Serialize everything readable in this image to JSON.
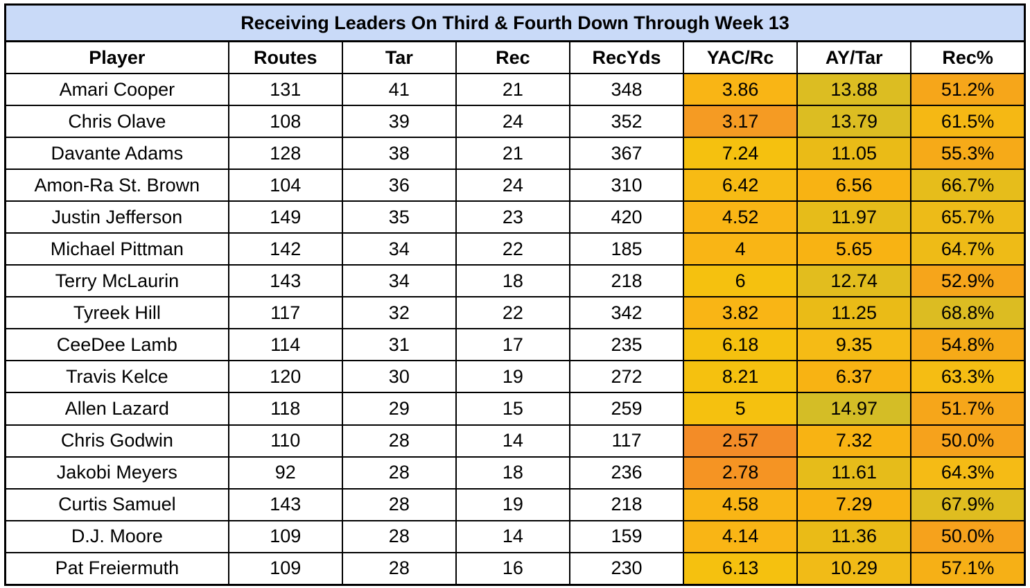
{
  "chart_data": {
    "type": "table",
    "title": "Receiving Leaders On Third & Fourth Down Through Week 13",
    "columns": [
      "Player",
      "Routes",
      "Tar",
      "Rec",
      "RecYds",
      "YAC/Rc",
      "AY/Tar",
      "Rec%"
    ],
    "rows": [
      [
        "Amari Cooper",
        "131",
        "41",
        "21",
        "348",
        "3.86",
        "13.88",
        "51.2%"
      ],
      [
        "Chris Olave",
        "108",
        "39",
        "24",
        "352",
        "3.17",
        "13.79",
        "61.5%"
      ],
      [
        "Davante Adams",
        "128",
        "38",
        "21",
        "367",
        "7.24",
        "11.05",
        "55.3%"
      ],
      [
        "Amon-Ra St. Brown",
        "104",
        "36",
        "24",
        "310",
        "6.42",
        "6.56",
        "66.7%"
      ],
      [
        "Justin Jefferson",
        "149",
        "35",
        "23",
        "420",
        "4.52",
        "11.97",
        "65.7%"
      ],
      [
        "Michael Pittman",
        "142",
        "34",
        "22",
        "185",
        "4",
        "5.65",
        "64.7%"
      ],
      [
        "Terry McLaurin",
        "143",
        "34",
        "18",
        "218",
        "6",
        "12.74",
        "52.9%"
      ],
      [
        "Tyreek Hill",
        "117",
        "32",
        "22",
        "342",
        "3.82",
        "11.25",
        "68.8%"
      ],
      [
        "CeeDee Lamb",
        "114",
        "31",
        "17",
        "235",
        "6.18",
        "9.35",
        "54.8%"
      ],
      [
        "Travis Kelce",
        "120",
        "30",
        "19",
        "272",
        "8.21",
        "6.37",
        "63.3%"
      ],
      [
        "Allen Lazard",
        "118",
        "29",
        "15",
        "259",
        "5",
        "14.97",
        "51.7%"
      ],
      [
        "Chris Godwin",
        "110",
        "28",
        "14",
        "117",
        "2.57",
        "7.32",
        "50.0%"
      ],
      [
        "Jakobi Meyers",
        "92",
        "28",
        "18",
        "236",
        "2.78",
        "11.61",
        "64.3%"
      ],
      [
        "Curtis Samuel",
        "143",
        "28",
        "19",
        "218",
        "4.58",
        "7.29",
        "67.9%"
      ],
      [
        "D.J. Moore",
        "109",
        "28",
        "14",
        "159",
        "4.14",
        "11.36",
        "50.0%"
      ],
      [
        "Pat Freiermuth",
        "109",
        "28",
        "16",
        "230",
        "6.13",
        "10.29",
        "57.1%"
      ]
    ],
    "cell_colors": {
      "YAC/Rc": [
        "#f9b515",
        "#f59b23",
        "#f5c10f",
        "#f7bb14",
        "#f9b515",
        "#f9b515",
        "#f5c10f",
        "#f9b515",
        "#f5c10f",
        "#f5c10f",
        "#f5c10f",
        "#f38c27",
        "#f59423",
        "#f9b515",
        "#f9b515",
        "#f5c10f"
      ],
      "AY/Tar": [
        "#dcbd22",
        "#dcbd22",
        "#eabb17",
        "#f8b313",
        "#e6bc1a",
        "#f8b313",
        "#e2bd1e",
        "#eabb17",
        "#f5bb15",
        "#f8b313",
        "#d4bd26",
        "#f8b313",
        "#e6bc1a",
        "#f8b313",
        "#eabb17",
        "#f1bb17"
      ],
      "Rec%": [
        "#f6a61a",
        "#f5b814",
        "#f6aa18",
        "#e6bd1b",
        "#edbb18",
        "#eebb17",
        "#f6a51b",
        "#dcbc22",
        "#f6aa18",
        "#f5bd13",
        "#f6a61a",
        "#f6a21c",
        "#f5bb15",
        "#dfbd20",
        "#f6a21c",
        "#f6b016"
      ]
    },
    "shaded_background": "#ffffff"
  }
}
